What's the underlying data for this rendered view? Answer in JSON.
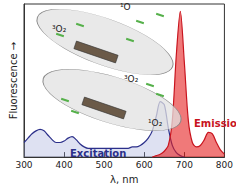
{
  "chart_data": {
    "type": "area",
    "x_label": "λ, nm",
    "y_label": "Fluorescence →",
    "x": [
      300,
      310,
      320,
      330,
      340,
      350,
      360,
      370,
      380,
      390,
      400,
      410,
      420,
      430,
      440,
      450,
      460,
      470,
      480,
      490,
      500,
      510,
      520,
      530,
      540,
      550,
      560,
      570,
      580,
      590,
      600,
      610,
      620,
      630,
      640,
      650,
      660,
      670,
      680,
      690,
      700,
      710,
      720,
      730,
      740,
      750,
      760,
      770,
      780,
      790,
      800
    ],
    "series": [
      {
        "name": "Excitation",
        "color": "#2b2f8a",
        "values": [
          0.1,
          0.13,
          0.16,
          0.18,
          0.19,
          0.18,
          0.15,
          0.12,
          0.1,
          0.1,
          0.11,
          0.13,
          0.14,
          0.12,
          0.09,
          0.07,
          0.06,
          0.06,
          0.06,
          0.06,
          0.06,
          0.06,
          0.06,
          0.06,
          0.06,
          0.06,
          0.06,
          0.07,
          0.07,
          0.08,
          0.1,
          0.13,
          0.18,
          0.28,
          0.38,
          0.36,
          0.2,
          0.08,
          0.03,
          0.01,
          0.0,
          null,
          null,
          null,
          null,
          null,
          null,
          null,
          null,
          null,
          null
        ]
      },
      {
        "name": "Emission",
        "color": "#c8141e",
        "values": [
          null,
          null,
          null,
          null,
          null,
          null,
          null,
          null,
          null,
          null,
          null,
          null,
          null,
          null,
          null,
          null,
          null,
          null,
          null,
          null,
          null,
          null,
          null,
          null,
          null,
          null,
          null,
          null,
          null,
          null,
          null,
          null,
          0.0,
          0.01,
          0.02,
          0.04,
          0.08,
          0.25,
          0.7,
          1.0,
          0.65,
          0.25,
          0.1,
          0.07,
          0.08,
          0.12,
          0.17,
          0.16,
          0.1,
          0.05,
          0.02
        ]
      }
    ],
    "xlim": [
      300,
      800
    ],
    "xticks": [
      300,
      400,
      500,
      600,
      700,
      800
    ],
    "ylim": [
      0,
      1.05
    ],
    "tick_labels": "x",
    "grid": false,
    "annotations": [
      "³O₂",
      "¹O",
      "³O₂",
      "¹O₂"
    ]
  }
}
